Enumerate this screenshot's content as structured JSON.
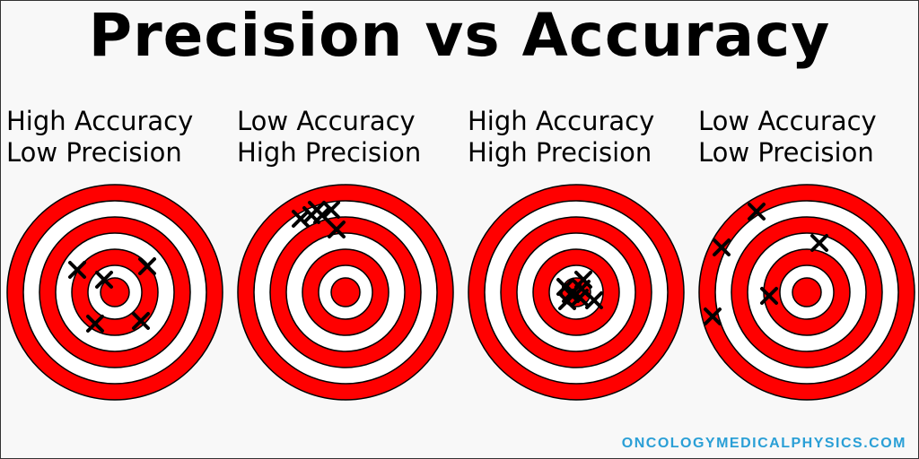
{
  "title": "Precision vs Accuracy",
  "colors": {
    "ring": "#ff0000",
    "gap": "#ffffff",
    "stroke": "#000000",
    "mark": "#000000",
    "footer": "#2a9fd6"
  },
  "targets": [
    {
      "line1": "High Accuracy",
      "line2": "Low Precision",
      "marks": [
        [
          -42,
          -25
        ],
        [
          -12,
          -14
        ],
        [
          36,
          -29
        ],
        [
          -22,
          35
        ],
        [
          29,
          32
        ]
      ]
    },
    {
      "line1": "Low Accuracy",
      "line2": "High Precision",
      "marks": [
        [
          -50,
          -82
        ],
        [
          -38,
          -86
        ],
        [
          -26,
          -86
        ],
        [
          -16,
          -92
        ],
        [
          -32,
          -92
        ],
        [
          -10,
          -70
        ]
      ]
    },
    {
      "line1": "High Accuracy",
      "line2": "High Precision",
      "marks": [
        [
          -12,
          -6
        ],
        [
          8,
          -14
        ],
        [
          -4,
          0
        ],
        [
          -10,
          10
        ],
        [
          4,
          6
        ],
        [
          20,
          9
        ],
        [
          -6,
          2
        ],
        [
          6,
          -4
        ]
      ]
    },
    {
      "line1": "Low Accuracy",
      "line2": "Low Precision",
      "marks": [
        [
          -56,
          -90
        ],
        [
          14,
          -55
        ],
        [
          -95,
          -50
        ],
        [
          -105,
          27
        ],
        [
          -42,
          4
        ]
      ]
    }
  ],
  "footer": "ONCOLOGYMEDICALPHYSICS.COM"
}
